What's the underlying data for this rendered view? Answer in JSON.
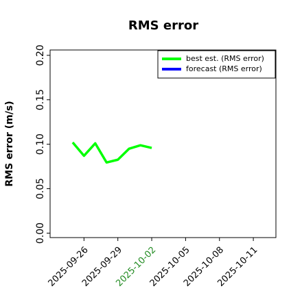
{
  "chart_data": {
    "type": "line",
    "title": "RMS error",
    "y_label": "RMS error (m/s)",
    "x": [
      "2025-09-25",
      "2025-09-26",
      "2025-09-27",
      "2025-09-28",
      "2025-09-29",
      "2025-09-30",
      "2025-10-01",
      "2025-10-02"
    ],
    "series": [
      {
        "name": "best est. (RMS error)",
        "color": "#00ff00",
        "values": [
          0.102,
          0.087,
          0.101,
          0.0795,
          0.0826,
          0.095,
          0.0988,
          0.0958
        ]
      },
      {
        "name": "forecast (RMS error)",
        "color": "#0000ff",
        "values": [
          null,
          null,
          null,
          null,
          null,
          null,
          null,
          null
        ]
      }
    ],
    "xlim": [
      "2025-09-23",
      "2025-10-13"
    ],
    "xticks": [
      "2025-09-26",
      "2025-09-29",
      "2025-10-02",
      "2025-10-05",
      "2025-10-08",
      "2025-10-11"
    ],
    "xtick_colors": [
      "#000000",
      "#000000",
      "#228b22",
      "#000000",
      "#000000",
      "#000000"
    ],
    "ylim": [
      -0.005,
      0.206
    ],
    "yticks": [
      {
        "value": 0,
        "label": "0.00"
      },
      {
        "value": 0.05,
        "label": "0.05"
      },
      {
        "value": 0.1,
        "label": "0.10"
      },
      {
        "value": 0.15,
        "label": "0.15"
      },
      {
        "value": 0.2,
        "label": "0.20"
      }
    ],
    "legend": "upper right"
  }
}
